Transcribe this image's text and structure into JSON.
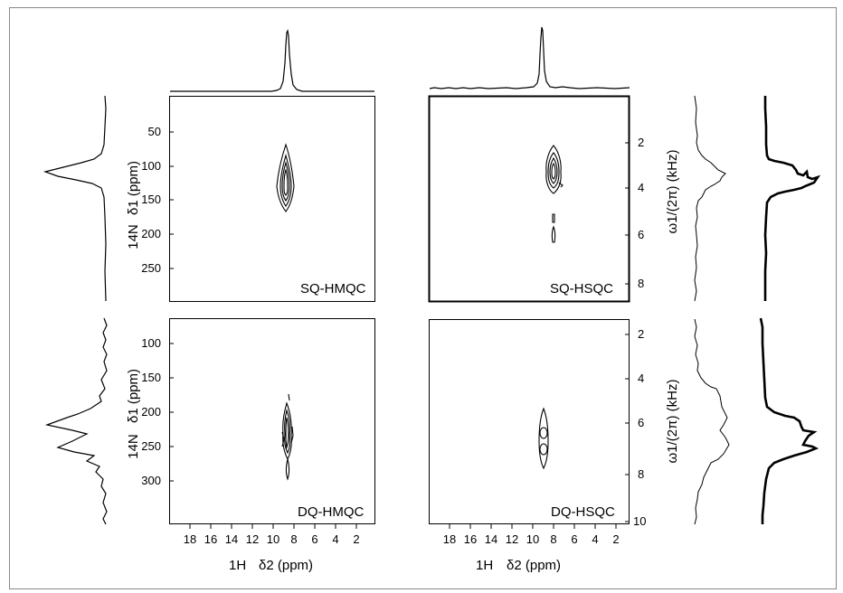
{
  "panels": {
    "sq_hmqc": {
      "label": "SQ-HMQC",
      "y_ticks": [
        "50",
        "100",
        "150",
        "200",
        "250"
      ],
      "x_ticks": [
        "18",
        "16",
        "14",
        "12",
        "10",
        "8",
        "6",
        "4",
        "2"
      ]
    },
    "sq_hsqc": {
      "label": "SQ-HSQC",
      "y_ticks": [
        "2",
        "4",
        "6",
        "8"
      ]
    },
    "dq_hmqc": {
      "label": "DQ-HMQC",
      "y_ticks": [
        "100",
        "150",
        "200",
        "250",
        "300"
      ],
      "x_ticks": [
        "18",
        "16",
        "14",
        "12",
        "10",
        "8",
        "6",
        "4",
        "2"
      ]
    },
    "dq_hsqc": {
      "label": "DQ-HSQC",
      "y_ticks": [
        "2",
        "4",
        "6",
        "8",
        "10"
      ],
      "x_ticks": [
        "18",
        "16",
        "14",
        "12",
        "10",
        "8",
        "6",
        "4",
        "2"
      ]
    }
  },
  "axes": {
    "left_top_label": "δ1 (ppm)",
    "left_bottom_label": "δ1 (ppm)",
    "nucleus_14N": "14N",
    "right_top_label": "ω1/(2π) (kHz)",
    "right_bottom_label": "ω1/(2π) (kHz)",
    "x_label_left": "δ2 (ppm)",
    "x_label_right": "δ2 (ppm)",
    "nucleus_1H": "1H"
  }
}
